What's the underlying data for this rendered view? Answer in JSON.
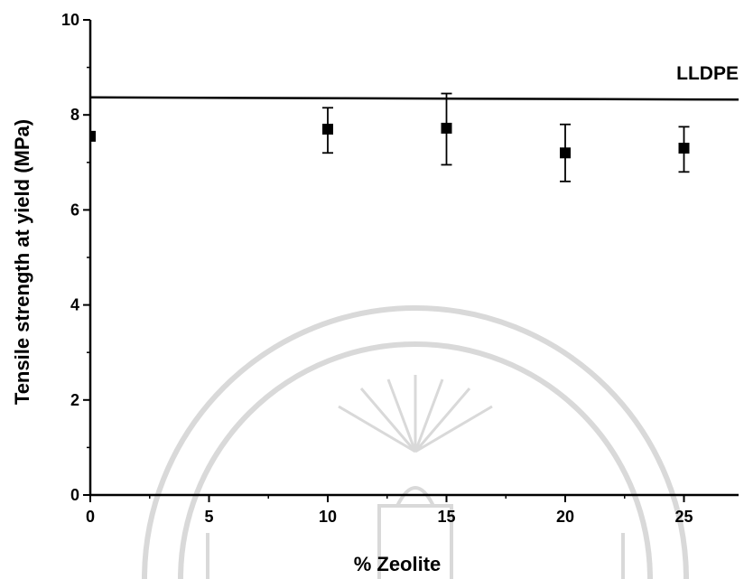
{
  "chart_data": {
    "type": "scatter",
    "xlabel": "% Zeolite",
    "ylabel": "Tensile strength at yield (MPa)",
    "xlim": [
      0,
      27.5
    ],
    "ylim": [
      0,
      10
    ],
    "x_ticks": [
      "0",
      "5",
      "10",
      "15",
      "20",
      "25"
    ],
    "y_ticks": [
      "0",
      "2",
      "4",
      "6",
      "8",
      "10"
    ],
    "x_tick_values": [
      0,
      5,
      10,
      15,
      20,
      25
    ],
    "y_tick_values": [
      0,
      2,
      4,
      6,
      8,
      10
    ],
    "grid": false,
    "series": [
      {
        "x": [
          0,
          10,
          15,
          20,
          25
        ],
        "y": [
          7.55,
          7.7,
          7.72,
          7.2,
          7.3
        ],
        "error_low": [
          null,
          7.2,
          6.95,
          6.6,
          6.8
        ],
        "error_high": [
          null,
          8.15,
          8.45,
          7.8,
          7.75
        ],
        "marker": "square",
        "color": "#000000"
      }
    ],
    "reference_line": {
      "label": "LLDPE",
      "y": 8.35,
      "color": "#000000"
    }
  },
  "watermark": {
    "type": "seal",
    "color": "#d9d9d9"
  }
}
